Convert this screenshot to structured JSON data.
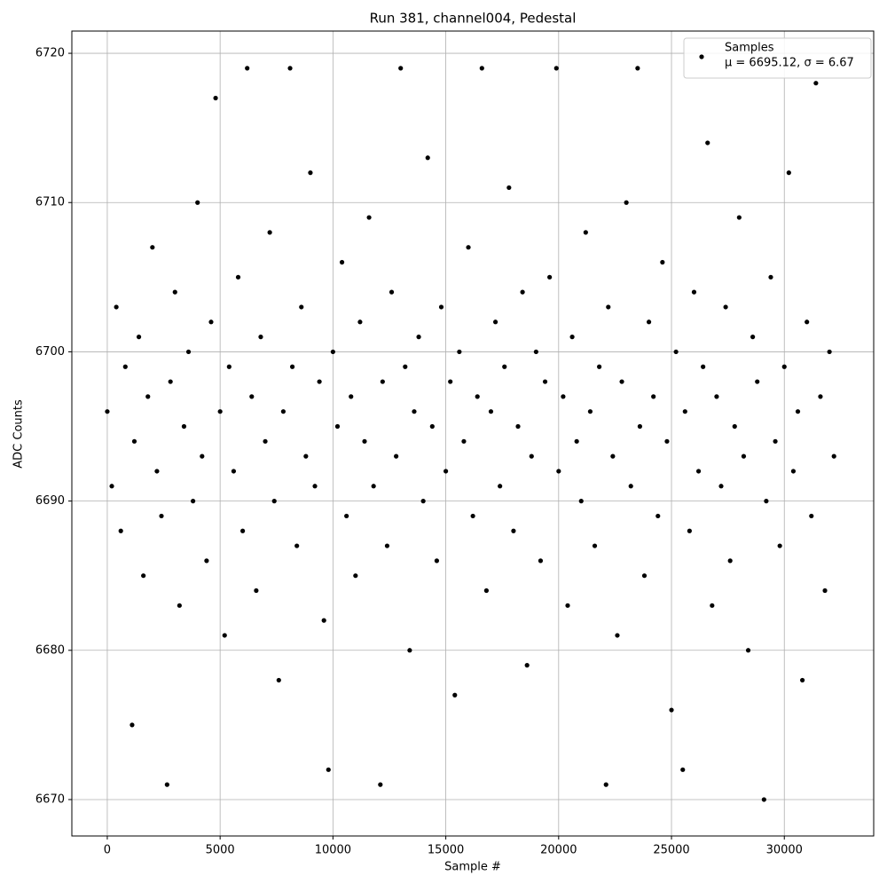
{
  "chart_data": {
    "type": "scatter",
    "title": "Run 381, channel004, Pedestal",
    "x_label": "Sample #",
    "y_label": "ADC Counts",
    "xlim": [
      -1570,
      33960
    ],
    "ylim": [
      6667.56,
      6721.49
    ],
    "xticks": [
      0,
      5000,
      10000,
      15000,
      20000,
      25000,
      30000
    ],
    "yticks": [
      6670,
      6680,
      6690,
      6700,
      6710,
      6720
    ],
    "grid": true,
    "legend_position": "upper right",
    "legend_note": "μ = 6695.12, σ = 6.67",
    "series": [
      {
        "name": "Samples",
        "color": "#000000",
        "x": [
          0,
          200,
          400,
          600,
          800,
          1100,
          1200,
          1400,
          1600,
          1800,
          2000,
          2200,
          2400,
          2650,
          2800,
          3000,
          3200,
          3400,
          3600,
          3800,
          4000,
          4200,
          4400,
          4600,
          4800,
          5000,
          5200,
          5400,
          5600,
          5800,
          6000,
          6200,
          6400,
          6600,
          6800,
          7000,
          7200,
          7400,
          7600,
          7800,
          8100,
          8200,
          8400,
          8600,
          8800,
          9000,
          9200,
          9400,
          9600,
          9800,
          10000,
          10200,
          10400,
          10600,
          10800,
          11000,
          11200,
          11400,
          11600,
          11800,
          12100,
          12200,
          12400,
          12600,
          12800,
          13000,
          13200,
          13400,
          13600,
          13800,
          14000,
          14200,
          14400,
          14600,
          14800,
          15000,
          15200,
          15400,
          15600,
          15800,
          16000,
          16200,
          16400,
          16600,
          16800,
          17000,
          17200,
          17400,
          17600,
          17800,
          18000,
          18200,
          18400,
          18600,
          18800,
          19000,
          19200,
          19400,
          19600,
          19900,
          20000,
          20200,
          20400,
          20600,
          20800,
          21000,
          21200,
          21400,
          21600,
          21800,
          22100,
          22200,
          22400,
          22600,
          22800,
          23000,
          23200,
          23500,
          23600,
          23800,
          24000,
          24200,
          24400,
          24600,
          24800,
          25000,
          25200,
          25500,
          25600,
          25800,
          26000,
          26200,
          26400,
          26600,
          26800,
          27000,
          27200,
          27400,
          27600,
          27800,
          28000,
          28200,
          28400,
          28600,
          28800,
          29100,
          29200,
          29400,
          29600,
          29800,
          30000,
          30200,
          30400,
          30600,
          30800,
          31000,
          31200,
          31400,
          31600,
          31800,
          32000,
          32200
        ],
        "values": [
          6696,
          6691,
          6703,
          6688,
          6699,
          6675,
          6694,
          6701,
          6685,
          6697,
          6707,
          6692,
          6689,
          6671,
          6698,
          6704,
          6683,
          6695,
          6700,
          6690,
          6710,
          6693,
          6686,
          6702,
          6717,
          6696,
          6681,
          6699,
          6692,
          6705,
          6688,
          6719,
          6697,
          6684,
          6701,
          6694,
          6708,
          6690,
          6678,
          6696,
          6719,
          6699,
          6687,
          6703,
          6693,
          6712,
          6691,
          6698,
          6682,
          6672,
          6700,
          6695,
          6706,
          6689,
          6697,
          6685,
          6702,
          6694,
          6709,
          6691,
          6671,
          6698,
          6687,
          6704,
          6693,
          6719,
          6699,
          6680,
          6696,
          6701,
          6690,
          6713,
          6695,
          6686,
          6703,
          6692,
          6698,
          6677,
          6700,
          6694,
          6707,
          6689,
          6697,
          6719,
          6684,
          6696,
          6702,
          6691,
          6699,
          6711,
          6688,
          6695,
          6704,
          6679,
          6693,
          6700,
          6686,
          6698,
          6705,
          6719,
          6692,
          6697,
          6683,
          6701,
          6694,
          6690,
          6708,
          6696,
          6687,
          6699,
          6671,
          6703,
          6693,
          6681,
          6698,
          6710,
          6691,
          6719,
          6695,
          6685,
          6702,
          6697,
          6689,
          6706,
          6694,
          6676,
          6700,
          6672,
          6696,
          6688,
          6704,
          6692,
          6699,
          6714,
          6683,
          6697,
          6691,
          6703,
          6686,
          6695,
          6709,
          6693,
          6680,
          6701,
          6698,
          6670,
          6690,
          6705,
          6694,
          6687,
          6699,
          6712,
          6692,
          6696,
          6678,
          6702,
          6689,
          6718,
          6697,
          6684,
          6700,
          6693
        ]
      }
    ]
  }
}
